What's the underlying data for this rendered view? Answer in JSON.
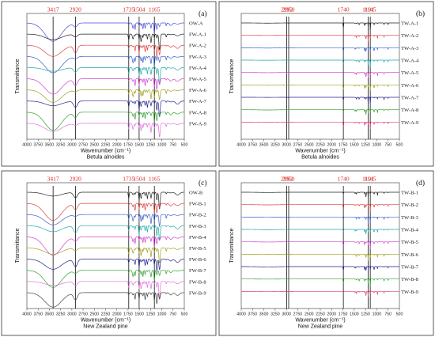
{
  "chart_data": [
    {
      "type": "line",
      "panel": "(a)",
      "xlabel": "Wavenumber (cm⁻¹)",
      "sublabel": "Betula alnoides",
      "ylabel": "Transmittance",
      "xlim": [
        4000,
        500
      ],
      "xticks": [
        4000,
        3750,
        3500,
        3250,
        3000,
        2750,
        2500,
        2250,
        2000,
        1750,
        1500,
        1250,
        1000,
        750,
        500
      ],
      "peaks": [
        3417,
        2920,
        1735,
        1504,
        1165
      ],
      "series": [
        {
          "name": "OW-A",
          "color": "#4a4ad6"
        },
        {
          "name": "FW-A-1",
          "color": "#222222"
        },
        {
          "name": "FW-A-2",
          "color": "#e04040"
        },
        {
          "name": "FW-A-3",
          "color": "#3a5fcd"
        },
        {
          "name": "FW-A-4",
          "color": "#20a8a8"
        },
        {
          "name": "FW-A-5",
          "color": "#d040d0"
        },
        {
          "name": "FW-A-6",
          "color": "#a0a020"
        },
        {
          "name": "FW-A-7",
          "color": "#202090"
        },
        {
          "name": "FW-A-8",
          "color": "#30a030"
        },
        {
          "name": "FW-A-9",
          "color": "#e070e0"
        }
      ]
    },
    {
      "type": "line",
      "panel": "(b)",
      "xlabel": "Wavenumber (cm⁻¹)",
      "sublabel": "Betula alnoides",
      "ylabel": "Transmittance",
      "xlim": [
        4000,
        500
      ],
      "xticks": [
        4000,
        3750,
        3500,
        3250,
        3000,
        2750,
        2500,
        2250,
        2000,
        1750,
        1500,
        1250,
        1000,
        750,
        500
      ],
      "peaks": [
        2992,
        2950,
        1740,
        1191,
        1145
      ],
      "series": [
        {
          "name": "TW-A-1",
          "color": "#222222"
        },
        {
          "name": "TW-A-2",
          "color": "#e04040"
        },
        {
          "name": "TW-A-3",
          "color": "#3a5fcd"
        },
        {
          "name": "TW-A-4",
          "color": "#20a8a8"
        },
        {
          "name": "TW-A-5",
          "color": "#d040d0"
        },
        {
          "name": "TW-A-6",
          "color": "#a0a020"
        },
        {
          "name": "TW-A-7",
          "color": "#202090"
        },
        {
          "name": "TW-A-8",
          "color": "#30a030"
        },
        {
          "name": "TW-A-9",
          "color": "#e04080"
        }
      ]
    },
    {
      "type": "line",
      "panel": "(c)",
      "xlabel": "Wavenumber (cm⁻¹)",
      "sublabel": "New Zealand pine",
      "ylabel": "Transmittance",
      "xlim": [
        4000,
        500
      ],
      "xticks": [
        4000,
        3750,
        3500,
        3250,
        3000,
        2750,
        2500,
        2250,
        2000,
        1750,
        1500,
        1250,
        1000,
        750,
        500
      ],
      "peaks": [
        3417,
        2920,
        1735,
        1504,
        1165
      ],
      "series": [
        {
          "name": "OW-B",
          "color": "#222222"
        },
        {
          "name": "FW-B-1",
          "color": "#e04040"
        },
        {
          "name": "FW-B-2",
          "color": "#3a5fcd"
        },
        {
          "name": "FW-B-3",
          "color": "#20a8a8"
        },
        {
          "name": "FW-B-4",
          "color": "#d040d0"
        },
        {
          "name": "FW-B-5",
          "color": "#a0a020"
        },
        {
          "name": "FW-B-6",
          "color": "#202090"
        },
        {
          "name": "FW-B-7",
          "color": "#30a030"
        },
        {
          "name": "FW-B-8",
          "color": "#e070e0"
        },
        {
          "name": "FW-B-9",
          "color": "#444444"
        }
      ]
    },
    {
      "type": "line",
      "panel": "(d)",
      "xlabel": "Wavenumber (cm⁻¹)",
      "sublabel": "New Zealand pine",
      "ylabel": "Transmittance",
      "xlim": [
        4000,
        500
      ],
      "xticks": [
        4000,
        3750,
        3500,
        3250,
        3000,
        2750,
        2500,
        2250,
        2000,
        1750,
        1500,
        1250,
        1000,
        750,
        500
      ],
      "peaks": [
        2992,
        2950,
        1740,
        1191,
        1145
      ],
      "series": [
        {
          "name": "TW-B-1",
          "color": "#222222"
        },
        {
          "name": "TW-B-2",
          "color": "#e04040"
        },
        {
          "name": "TW-B-3",
          "color": "#3a5fcd"
        },
        {
          "name": "TW-B-4",
          "color": "#20a8a8"
        },
        {
          "name": "TW-B-5",
          "color": "#d040d0"
        },
        {
          "name": "TW-B-6",
          "color": "#a0a020"
        },
        {
          "name": "TW-B-7",
          "color": "#202090"
        },
        {
          "name": "TW-B-8",
          "color": "#30a030"
        },
        {
          "name": "TW-B-9",
          "color": "#e04080"
        }
      ]
    }
  ]
}
